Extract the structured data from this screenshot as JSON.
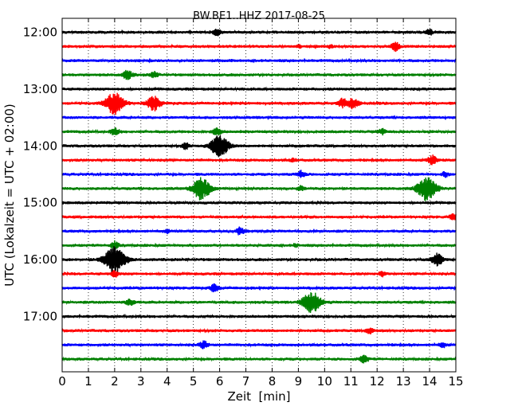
{
  "chart_data": {
    "type": "line",
    "title": "BW.BE1..HHZ 2017-08-25",
    "xlabel": "Zeit  [min]",
    "ylabel": "UTC (Lokalzeit = UTC + 02:00)",
    "xlim": [
      0,
      15
    ],
    "x_ticks": [
      "0",
      "1",
      "2",
      "3",
      "4",
      "5",
      "6",
      "7",
      "8",
      "9",
      "10",
      "11",
      "12",
      "13",
      "14",
      "15"
    ],
    "grid_x": true,
    "y_tick_labels": [
      "12:00",
      "13:00",
      "14:00",
      "15:00",
      "16:00",
      "17:00"
    ],
    "trace_interval_min": 15,
    "color_cycle": [
      "#000000",
      "#ff0000",
      "#0000ff",
      "#008000"
    ],
    "series": [
      {
        "start_utc": "12:00",
        "events": [
          {
            "t": 5.9,
            "amp": 0.22
          },
          {
            "t": 14.0,
            "amp": 0.2
          }
        ]
      },
      {
        "start_utc": "12:15",
        "events": [
          {
            "t": 12.7,
            "amp": 0.28
          },
          {
            "t": 9.0,
            "amp": 0.1
          },
          {
            "t": 10.2,
            "amp": 0.1
          }
        ]
      },
      {
        "start_utc": "12:30",
        "events": []
      },
      {
        "start_utc": "12:45",
        "events": [
          {
            "t": 2.5,
            "amp": 0.3
          },
          {
            "t": 3.5,
            "amp": 0.2
          }
        ]
      },
      {
        "start_utc": "13:00",
        "events": []
      },
      {
        "start_utc": "13:15",
        "events": [
          {
            "t": 2.0,
            "amp": 0.75
          },
          {
            "t": 3.5,
            "amp": 0.5
          },
          {
            "t": 10.7,
            "amp": 0.3
          },
          {
            "t": 11.1,
            "amp": 0.35
          }
        ]
      },
      {
        "start_utc": "13:30",
        "events": []
      },
      {
        "start_utc": "13:45",
        "events": [
          {
            "t": 2.0,
            "amp": 0.25
          },
          {
            "t": 5.9,
            "amp": 0.25
          },
          {
            "t": 12.2,
            "amp": 0.2
          }
        ]
      },
      {
        "start_utc": "14:00",
        "events": [
          {
            "t": 6.0,
            "amp": 0.75
          },
          {
            "t": 4.7,
            "amp": 0.2
          }
        ]
      },
      {
        "start_utc": "14:15",
        "events": [
          {
            "t": 14.1,
            "amp": 0.3
          },
          {
            "t": 8.8,
            "amp": 0.1
          }
        ]
      },
      {
        "start_utc": "14:30",
        "events": [
          {
            "t": 9.1,
            "amp": 0.22
          },
          {
            "t": 14.6,
            "amp": 0.15
          }
        ]
      },
      {
        "start_utc": "14:45",
        "events": [
          {
            "t": 5.3,
            "amp": 0.75
          },
          {
            "t": 13.9,
            "amp": 0.8
          },
          {
            "t": 9.1,
            "amp": 0.15
          }
        ]
      },
      {
        "start_utc": "15:00",
        "events": []
      },
      {
        "start_utc": "15:15",
        "events": [
          {
            "t": 14.9,
            "amp": 0.2
          }
        ]
      },
      {
        "start_utc": "15:30",
        "events": [
          {
            "t": 6.8,
            "amp": 0.25
          },
          {
            "t": 4.0,
            "amp": 0.1
          }
        ]
      },
      {
        "start_utc": "15:45",
        "events": [
          {
            "t": 2.0,
            "amp": 0.25
          },
          {
            "t": 8.9,
            "amp": 0.1
          }
        ]
      },
      {
        "start_utc": "16:00",
        "events": [
          {
            "t": 2.0,
            "amp": 0.9
          },
          {
            "t": 14.3,
            "amp": 0.4
          }
        ]
      },
      {
        "start_utc": "16:15",
        "events": [
          {
            "t": 2.0,
            "amp": 0.2
          },
          {
            "t": 12.2,
            "amp": 0.15
          }
        ]
      },
      {
        "start_utc": "16:30",
        "events": [
          {
            "t": 5.8,
            "amp": 0.25
          }
        ]
      },
      {
        "start_utc": "16:45",
        "events": [
          {
            "t": 9.5,
            "amp": 0.75
          },
          {
            "t": 2.6,
            "amp": 0.25
          }
        ]
      },
      {
        "start_utc": "17:00",
        "events": []
      },
      {
        "start_utc": "17:15",
        "events": [
          {
            "t": 11.7,
            "amp": 0.2
          }
        ]
      },
      {
        "start_utc": "17:30",
        "events": [
          {
            "t": 5.4,
            "amp": 0.25
          },
          {
            "t": 14.5,
            "amp": 0.15
          }
        ]
      },
      {
        "start_utc": "17:45",
        "events": [
          {
            "t": 11.5,
            "amp": 0.25
          }
        ]
      }
    ]
  }
}
